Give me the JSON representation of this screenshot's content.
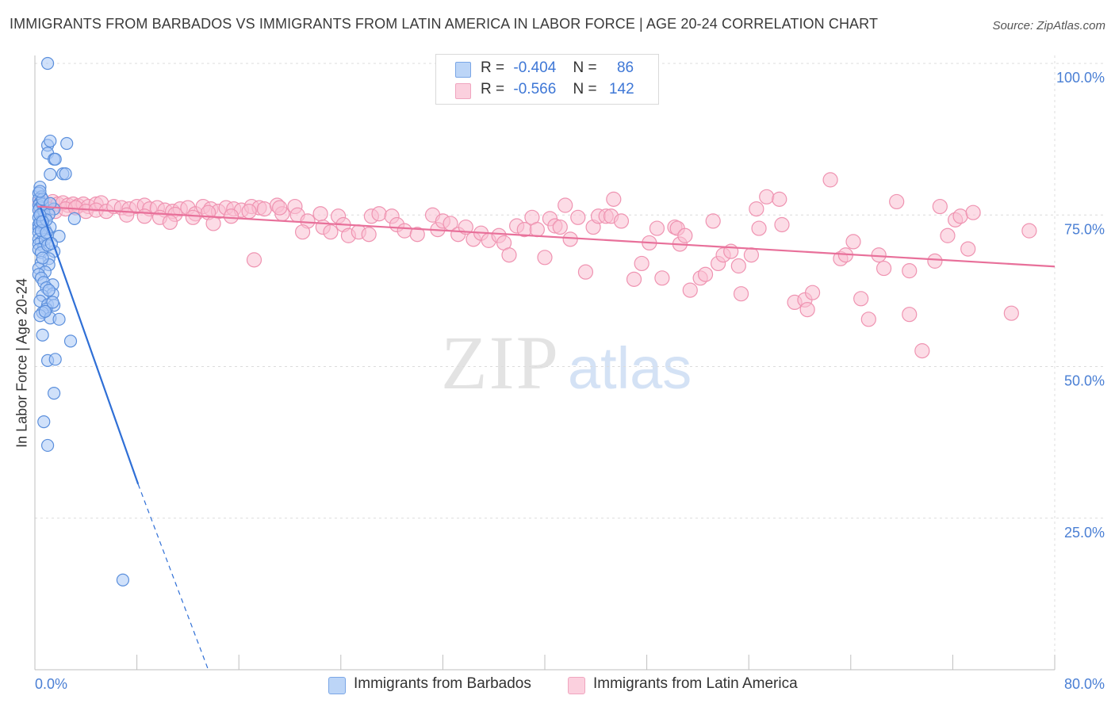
{
  "title": "IMMIGRANTS FROM BARBADOS VS IMMIGRANTS FROM LATIN AMERICA IN LABOR FORCE | AGE 20-24 CORRELATION CHART",
  "source": "Source: ZipAtlas.com",
  "watermark": {
    "zip": "ZIP",
    "atlas": "atlas"
  },
  "legend": {
    "r_label": "R =",
    "n_label": "N =",
    "rows": [
      {
        "r": "-0.404",
        "n": "86"
      },
      {
        "r": "-0.566",
        "n": "142"
      }
    ]
  },
  "colors": {
    "barbados_fill": "#a9c8f5",
    "barbados_stroke": "#5b8fdc",
    "barbados_line": "#2f6fd6",
    "latam_fill": "#f9bfd1",
    "latam_stroke": "#ef93b1",
    "latam_line": "#e8709a",
    "axis_text": "#4a7fd4",
    "grid": "#dcdcdc"
  },
  "chart_data": {
    "type": "scatter",
    "title": "IMMIGRANTS FROM BARBADOS VS IMMIGRANTS FROM LATIN AMERICA IN LABOR FORCE | AGE 20-24 CORRELATION CHART",
    "xlabel": "",
    "ylabel": "In Labor Force | Age 20-24",
    "xlim": [
      0,
      80
    ],
    "ylim": [
      0,
      100
    ],
    "x_ticks": [
      "0.0%",
      "80.0%"
    ],
    "y_ticks": [
      {
        "value": 100,
        "label": "100.0%"
      },
      {
        "value": 75,
        "label": "75.0%"
      },
      {
        "value": 50,
        "label": "50.0%"
      },
      {
        "value": 25,
        "label": "25.0%"
      }
    ],
    "grid": true,
    "legend_position": "top-center",
    "series": [
      {
        "name": "Immigrants from Barbados",
        "r": -0.404,
        "n": 86,
        "trend": {
          "x1": 0.4,
          "y1": 76.5,
          "x2": 8.1,
          "y2": 30.6,
          "dash_x2": 13.6,
          "dash_y2": 0
        },
        "points": [
          [
            1.0,
            100
          ],
          [
            1.0,
            86.5
          ],
          [
            1.2,
            87.2
          ],
          [
            2.5,
            86.8
          ],
          [
            1.0,
            85.2
          ],
          [
            1.5,
            84.2
          ],
          [
            1.6,
            84.2
          ],
          [
            1.2,
            81.7
          ],
          [
            2.2,
            81.8
          ],
          [
            2.4,
            81.8
          ],
          [
            0.4,
            79.6
          ],
          [
            0.3,
            78.6
          ],
          [
            0.5,
            78
          ],
          [
            0.3,
            77.6
          ],
          [
            0.4,
            77
          ],
          [
            0.3,
            76.6
          ],
          [
            0.4,
            76.2
          ],
          [
            0.3,
            75.8
          ],
          [
            0.5,
            75.2
          ],
          [
            0.3,
            74.6
          ],
          [
            0.5,
            74.0
          ],
          [
            0.3,
            73.4
          ],
          [
            0.6,
            73.3
          ],
          [
            0.3,
            72.8
          ],
          [
            0.8,
            72.6
          ],
          [
            0.3,
            72.1
          ],
          [
            1.0,
            71.8
          ],
          [
            1.9,
            71.5
          ],
          [
            0.3,
            71.0
          ],
          [
            0.5,
            70.6
          ],
          [
            0.3,
            70.2
          ],
          [
            0.7,
            69.8
          ],
          [
            0.3,
            69.3
          ],
          [
            0.5,
            68.8
          ],
          [
            1.5,
            69.0
          ],
          [
            1.1,
            67.8
          ],
          [
            0.5,
            67.2
          ],
          [
            1.1,
            66.8
          ],
          [
            0.3,
            66.2
          ],
          [
            0.8,
            65.6
          ],
          [
            0.3,
            65.2
          ],
          [
            0.5,
            64.6
          ],
          [
            0.7,
            63.9
          ],
          [
            1.4,
            63.5
          ],
          [
            0.9,
            63.0
          ],
          [
            1.4,
            62.0
          ],
          [
            0.6,
            61.7
          ],
          [
            0.4,
            60.8
          ],
          [
            1.0,
            60.2
          ],
          [
            1.5,
            60.1
          ],
          [
            0.9,
            59.5
          ],
          [
            0.6,
            58.9
          ],
          [
            0.4,
            58.4
          ],
          [
            1.2,
            58.0
          ],
          [
            1.9,
            57.8
          ],
          [
            0.6,
            55.2
          ],
          [
            2.8,
            54.2
          ],
          [
            1.0,
            51.0
          ],
          [
            1.6,
            51.2
          ],
          [
            1.5,
            45.6
          ],
          [
            0.7,
            40.9
          ],
          [
            1.0,
            37.0
          ],
          [
            6.9,
            14.8
          ],
          [
            3.1,
            74.4
          ],
          [
            0.8,
            74.8
          ],
          [
            1.5,
            76.0
          ],
          [
            0.6,
            76.8
          ],
          [
            0.4,
            73.8
          ],
          [
            1.2,
            73.0
          ],
          [
            0.8,
            71.0
          ],
          [
            1.0,
            70.0
          ],
          [
            0.5,
            72.4
          ],
          [
            0.7,
            75.6
          ],
          [
            1.1,
            75.1
          ],
          [
            0.6,
            77.6
          ],
          [
            0.4,
            78.9
          ],
          [
            0.9,
            74.2
          ],
          [
            1.3,
            70.3
          ],
          [
            0.6,
            67.9
          ],
          [
            1.1,
            62.6
          ],
          [
            0.8,
            59.1
          ],
          [
            1.4,
            60.6
          ],
          [
            0.4,
            75.0
          ],
          [
            0.6,
            73.9
          ],
          [
            0.9,
            72.1
          ],
          [
            1.2,
            76.9
          ]
        ]
      },
      {
        "name": "Immigrants from Latin America",
        "r": -0.566,
        "n": 142,
        "trend": {
          "x1": 0.2,
          "y1": 76.4,
          "x2": 80.0,
          "y2": 66.5
        },
        "points": [
          [
            0.4,
            77.2
          ],
          [
            0.8,
            76.8
          ],
          [
            1.4,
            77.2
          ],
          [
            1.8,
            76.8
          ],
          [
            2.2,
            77.0
          ],
          [
            2.6,
            76.6
          ],
          [
            3.0,
            76.8
          ],
          [
            3.4,
            76.5
          ],
          [
            3.8,
            76.8
          ],
          [
            4.2,
            76.4
          ],
          [
            4.8,
            76.8
          ],
          [
            5.2,
            77.0
          ],
          [
            0.5,
            75.8
          ],
          [
            1.0,
            76.0
          ],
          [
            1.6,
            75.6
          ],
          [
            2.4,
            76.0
          ],
          [
            3.2,
            76.2
          ],
          [
            4.0,
            75.6
          ],
          [
            4.8,
            75.8
          ],
          [
            5.6,
            75.6
          ],
          [
            6.2,
            76.4
          ],
          [
            6.8,
            76.2
          ],
          [
            7.4,
            76.0
          ],
          [
            8.0,
            76.4
          ],
          [
            8.6,
            76.6
          ],
          [
            9.0,
            76.0
          ],
          [
            9.6,
            76.2
          ],
          [
            10.2,
            75.8
          ],
          [
            10.8,
            75.6
          ],
          [
            11.4,
            76.0
          ],
          [
            12.0,
            76.2
          ],
          [
            12.6,
            75.2
          ],
          [
            13.2,
            76.4
          ],
          [
            13.8,
            76.0
          ],
          [
            14.4,
            75.6
          ],
          [
            15.0,
            76.2
          ],
          [
            15.6,
            76.0
          ],
          [
            16.2,
            75.8
          ],
          [
            17.0,
            76.4
          ],
          [
            17.6,
            76.2
          ],
          [
            18.0,
            76.0
          ],
          [
            19.0,
            76.6
          ],
          [
            7.2,
            75.0
          ],
          [
            8.6,
            74.8
          ],
          [
            9.8,
            74.6
          ],
          [
            11.0,
            75.1
          ],
          [
            12.4,
            74.6
          ],
          [
            13.6,
            75.4
          ],
          [
            15.4,
            74.8
          ],
          [
            16.8,
            75.6
          ],
          [
            17.2,
            67.6
          ],
          [
            19.4,
            75.2
          ],
          [
            20.4,
            76.4
          ],
          [
            20.6,
            75.0
          ],
          [
            21.4,
            74.0
          ],
          [
            21.0,
            72.2
          ],
          [
            22.4,
            75.2
          ],
          [
            22.6,
            73.0
          ],
          [
            23.2,
            72.2
          ],
          [
            23.8,
            74.8
          ],
          [
            24.2,
            73.4
          ],
          [
            24.6,
            71.6
          ],
          [
            25.4,
            72.2
          ],
          [
            26.2,
            71.8
          ],
          [
            26.4,
            74.8
          ],
          [
            27.0,
            75.2
          ],
          [
            28.0,
            74.8
          ],
          [
            28.4,
            73.4
          ],
          [
            29.0,
            72.4
          ],
          [
            30.0,
            71.8
          ],
          [
            31.2,
            75.0
          ],
          [
            31.6,
            72.6
          ],
          [
            32.0,
            74.0
          ],
          [
            32.6,
            73.6
          ],
          [
            33.2,
            71.8
          ],
          [
            33.8,
            73.0
          ],
          [
            34.4,
            71.0
          ],
          [
            35.0,
            72.0
          ],
          [
            35.6,
            70.8
          ],
          [
            36.4,
            71.6
          ],
          [
            36.8,
            70.4
          ],
          [
            37.2,
            68.4
          ],
          [
            37.8,
            73.2
          ],
          [
            38.4,
            72.6
          ],
          [
            39.0,
            74.6
          ],
          [
            39.4,
            72.6
          ],
          [
            40.0,
            68.0
          ],
          [
            40.4,
            74.4
          ],
          [
            40.8,
            73.2
          ],
          [
            41.2,
            73.0
          ],
          [
            41.6,
            76.6
          ],
          [
            42.0,
            71.0
          ],
          [
            42.6,
            74.6
          ],
          [
            43.2,
            65.6
          ],
          [
            43.8,
            73.0
          ],
          [
            44.2,
            74.8
          ],
          [
            44.8,
            74.8
          ],
          [
            45.2,
            74.8
          ],
          [
            45.4,
            77.6
          ],
          [
            46.0,
            74.0
          ],
          [
            47.0,
            64.4
          ],
          [
            47.6,
            67.0
          ],
          [
            48.2,
            70.4
          ],
          [
            48.8,
            72.8
          ],
          [
            49.2,
            64.6
          ],
          [
            50.2,
            73.0
          ],
          [
            50.4,
            72.8
          ],
          [
            50.6,
            70.2
          ],
          [
            51.0,
            71.6
          ],
          [
            51.4,
            62.6
          ],
          [
            52.2,
            64.6
          ],
          [
            52.6,
            65.2
          ],
          [
            53.2,
            74.0
          ],
          [
            53.6,
            67.0
          ],
          [
            54.0,
            68.4
          ],
          [
            54.6,
            69.0
          ],
          [
            55.2,
            66.6
          ],
          [
            55.4,
            62.0
          ],
          [
            56.2,
            68.4
          ],
          [
            56.6,
            76.0
          ],
          [
            56.8,
            72.8
          ],
          [
            57.4,
            78.0
          ],
          [
            58.4,
            77.6
          ],
          [
            58.6,
            73.4
          ],
          [
            59.6,
            60.6
          ],
          [
            60.4,
            61.0
          ],
          [
            60.6,
            59.4
          ],
          [
            61.0,
            62.2
          ],
          [
            62.4,
            80.8
          ],
          [
            63.2,
            67.8
          ],
          [
            63.6,
            68.4
          ],
          [
            64.2,
            70.6
          ],
          [
            64.8,
            61.2
          ],
          [
            65.4,
            57.8
          ],
          [
            66.2,
            68.4
          ],
          [
            66.6,
            66.2
          ],
          [
            67.6,
            77.2
          ],
          [
            68.6,
            58.6
          ],
          [
            68.6,
            65.8
          ],
          [
            69.6,
            52.6
          ],
          [
            70.6,
            67.4
          ],
          [
            71.0,
            76.4
          ],
          [
            71.6,
            71.6
          ],
          [
            72.2,
            74.2
          ],
          [
            72.6,
            74.8
          ],
          [
            73.2,
            69.4
          ],
          [
            73.6,
            75.4
          ],
          [
            76.6,
            58.8
          ],
          [
            78.0,
            72.4
          ],
          [
            19.2,
            76.2
          ],
          [
            14.0,
            73.6
          ],
          [
            10.6,
            73.8
          ]
        ]
      }
    ]
  },
  "bottom_legend": [
    {
      "label": "Immigrants from Barbados"
    },
    {
      "label": "Immigrants from Latin America"
    }
  ]
}
